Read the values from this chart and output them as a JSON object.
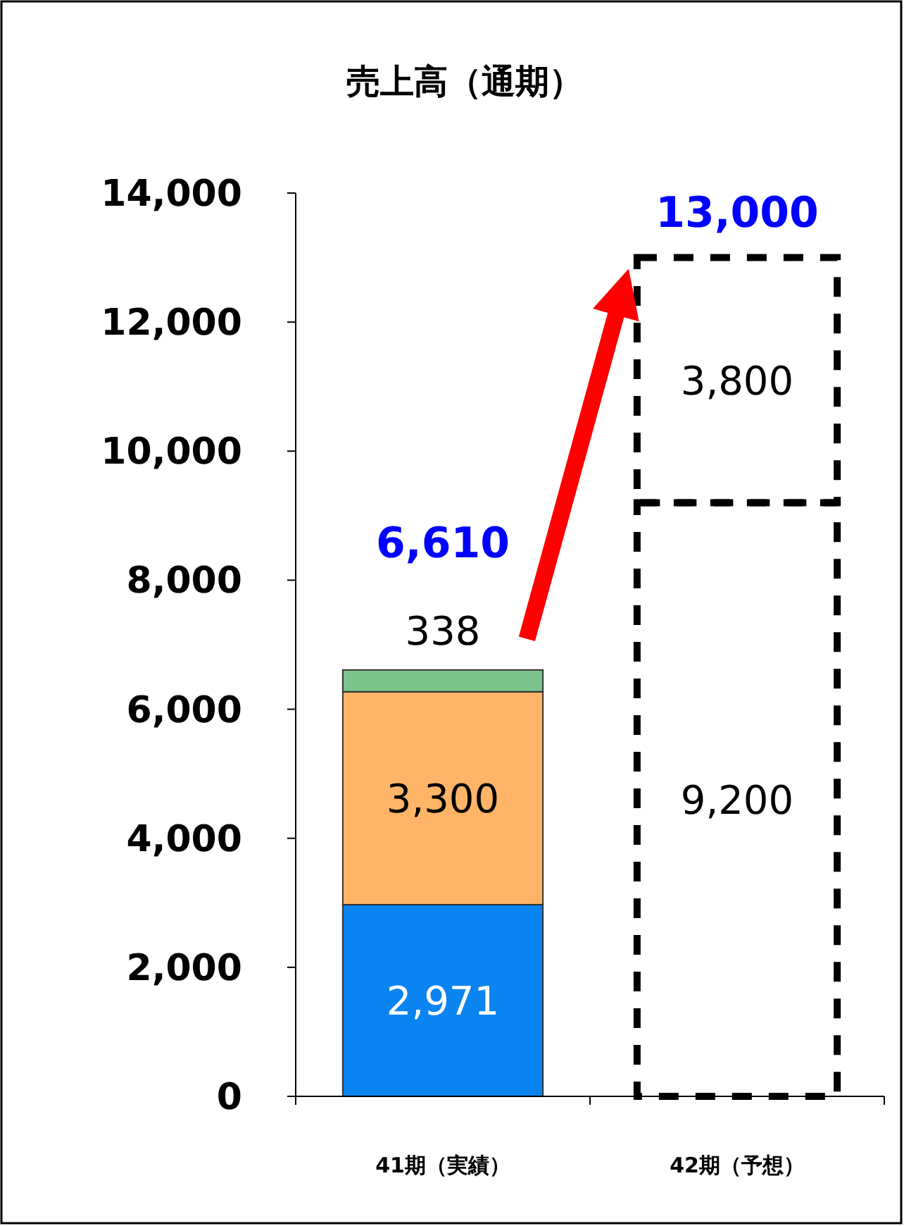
{
  "chart_data": {
    "type": "bar",
    "title": "売上高（通期）",
    "categories": [
      "41期（実績）",
      "42期（予想）"
    ],
    "stacked": true,
    "totals": [
      "6,610",
      "13,000"
    ],
    "ylim": [
      0,
      14000
    ],
    "yticks": [
      {
        "value": 0,
        "label": "0"
      },
      {
        "value": 2000,
        "label": "2,000"
      },
      {
        "value": 4000,
        "label": "4,000"
      },
      {
        "value": 6000,
        "label": "6,000"
      },
      {
        "value": 8000,
        "label": "8,000"
      },
      {
        "value": 10000,
        "label": "10,000"
      },
      {
        "value": 12000,
        "label": "12,000"
      },
      {
        "value": 14000,
        "label": "14,000"
      }
    ],
    "series": [
      {
        "color": "#0a84f0",
        "values": [
          2971,
          null
        ],
        "value_labels": [
          "2,971",
          null
        ]
      },
      {
        "color": "#ffb468",
        "values": [
          3300,
          null
        ],
        "value_labels": [
          "3,300",
          null
        ]
      },
      {
        "color": "#7cc48c",
        "values": [
          338,
          null
        ],
        "value_labels": [
          "338",
          null
        ]
      },
      {
        "color": "#000000",
        "line_style": "dashed",
        "values": [
          null,
          9200
        ],
        "value_labels": [
          null,
          "9,200"
        ]
      },
      {
        "color": "#000000",
        "line_style": "dashed",
        "values": [
          null,
          3800
        ],
        "value_labels": [
          null,
          "3,800"
        ]
      }
    ]
  }
}
